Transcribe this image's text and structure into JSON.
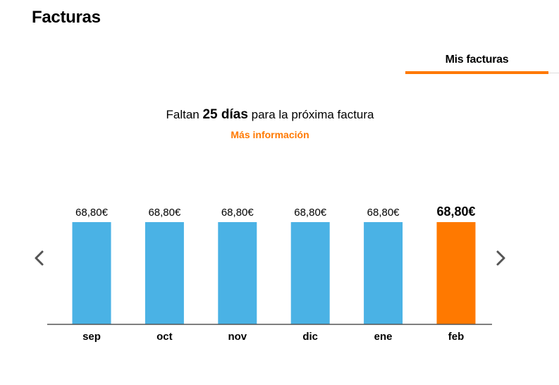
{
  "page": {
    "title": "Facturas"
  },
  "tabs": [
    {
      "label": "Mis facturas",
      "active": true
    }
  ],
  "next_bill": {
    "prefix": "Faltan",
    "days": "25 días",
    "suffix": "para la próxima factura",
    "link_label": "Más información"
  },
  "colors": {
    "accent": "#ff7900",
    "bar_default": "#4ab2e5",
    "bar_selected": "#ff7900",
    "arrow": "#555555"
  },
  "icons": {
    "previous": "chevron-left-icon",
    "next": "chevron-right-icon"
  },
  "chart_data": {
    "type": "bar",
    "categories": [
      "sep",
      "oct",
      "nov",
      "dic",
      "ene",
      "feb"
    ],
    "values": [
      68.8,
      68.8,
      68.8,
      68.8,
      68.8,
      68.8
    ],
    "value_labels": [
      "68,80€",
      "68,80€",
      "68,80€",
      "68,80€",
      "68,80€",
      "68,80€"
    ],
    "selected_index": 5,
    "title": "",
    "xlabel": "",
    "ylabel": "",
    "grid": false,
    "legend": "none"
  }
}
